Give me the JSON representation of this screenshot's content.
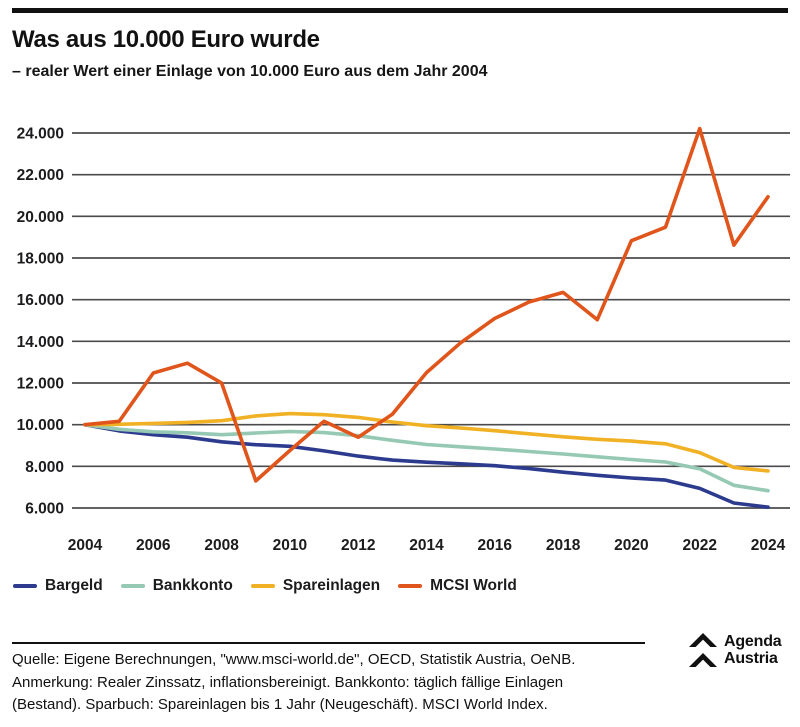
{
  "header": {
    "title": "Was aus 10.000 Euro wurde",
    "subtitle": "– realer Wert einer Einlage von 10.000 Euro aus dem Jahr 2004"
  },
  "chart_data": {
    "type": "line",
    "title": "Was aus 10.000 Euro wurde",
    "subtitle": "realer Wert einer Einlage von 10.000 Euro aus dem Jahr 2004",
    "x": [
      2004,
      2005,
      2006,
      2007,
      2008,
      2009,
      2010,
      2011,
      2012,
      2013,
      2014,
      2015,
      2016,
      2017,
      2018,
      2019,
      2020,
      2021,
      2022,
      2023,
      2024
    ],
    "xtick_labels": [
      "2004",
      "2006",
      "2008",
      "2010",
      "2012",
      "2014",
      "2016",
      "2018",
      "2020",
      "2022",
      "2024"
    ],
    "ytick_values": [
      24000,
      22000,
      20000,
      18000,
      16000,
      14000,
      12000,
      10000,
      8000,
      6000
    ],
    "ytick_labels": [
      "24.000",
      "22.000",
      "20.000",
      "18.000",
      "16.000",
      "14.000",
      "12.000",
      "10.000",
      "8.000",
      "6.000"
    ],
    "ylim": [
      5600,
      24600
    ],
    "grid": true,
    "gridline_color": "#4b4b4e",
    "legend_position": "bottom",
    "series": [
      {
        "name": "Bargeld",
        "color": "#2c3b8e",
        "values": [
          10000,
          9700,
          9520,
          9400,
          9180,
          9040,
          8960,
          8740,
          8490,
          8300,
          8200,
          8120,
          8030,
          7890,
          7720,
          7570,
          7440,
          7340,
          6940,
          6240,
          6040
        ]
      },
      {
        "name": "Bankkonto",
        "color": "#95c9b4",
        "values": [
          10000,
          9780,
          9660,
          9610,
          9520,
          9600,
          9670,
          9620,
          9470,
          9250,
          9050,
          8940,
          8830,
          8710,
          8590,
          8460,
          8330,
          8210,
          7880,
          7090,
          6830
        ]
      },
      {
        "name": "Spareinlagen",
        "color": "#f1b125",
        "values": [
          10000,
          10020,
          10060,
          10110,
          10190,
          10420,
          10530,
          10480,
          10350,
          10130,
          9950,
          9840,
          9710,
          9560,
          9420,
          9300,
          9210,
          9080,
          8660,
          7950,
          7780
        ]
      },
      {
        "name": "MCSI World",
        "color": "#e0551b",
        "values": [
          10000,
          10160,
          12480,
          12950,
          12000,
          7300,
          8760,
          10160,
          9400,
          10500,
          12500,
          13930,
          15100,
          15890,
          16350,
          15040,
          18830,
          19480,
          24210,
          18620,
          20940
        ]
      }
    ]
  },
  "footer": {
    "source_line": "Quelle: Eigene Berechnungen, \"www.msci-world.de\", OECD, Statistik Austria, OeNB.",
    "note_line1": "Anmerkung: Realer Zinssatz, inflationsbereinigt. Bankkonto: täglich fällige Einlagen",
    "note_line2": "(Bestand). Sparbuch: Spareinlagen bis 1 Jahr (Neugeschäft). MSCI World Index.",
    "logo_line1": "Agenda",
    "logo_line2": "Austria"
  }
}
